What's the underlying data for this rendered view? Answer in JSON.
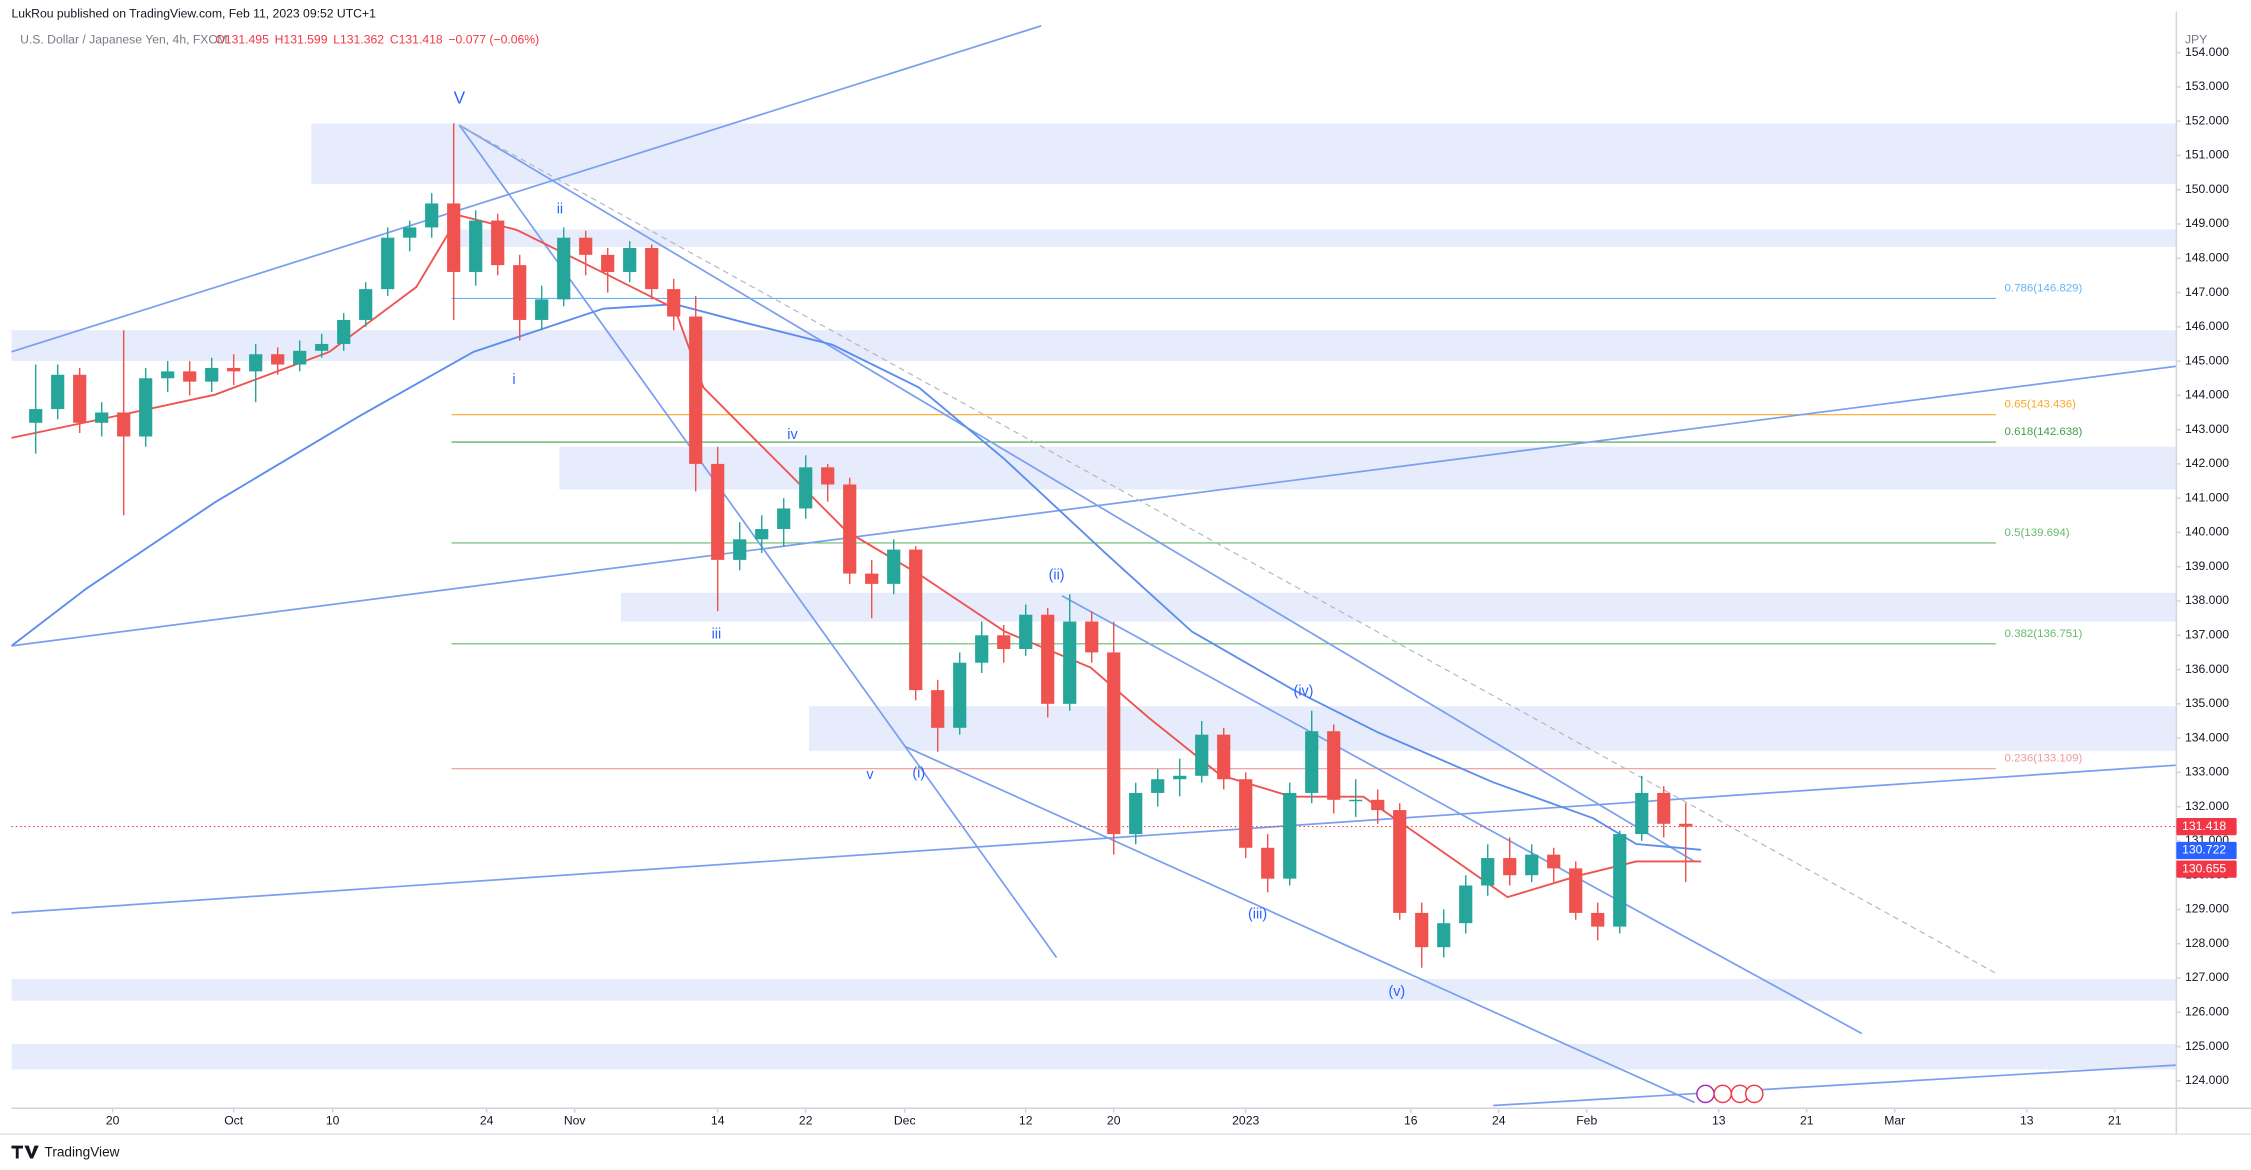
{
  "header": {
    "published": "LukRou published on TradingView.com, Feb 11, 2023 09:52 UTC+1"
  },
  "chart_data": {
    "type": "candlestick",
    "title": "U.S. Dollar / Japanese Yen, 4h, FXCM",
    "ohlc_labels": [
      "O131.495",
      "H131.599",
      "L131.362",
      "C131.418",
      "−0.077 (−0.06%)"
    ],
    "currency": "JPY",
    "up_color": "#26a69a",
    "down_color": "#ef5350",
    "x": [
      -18,
      -16,
      -14,
      -12,
      -10,
      -8,
      -6,
      -4,
      -2,
      0,
      2,
      4,
      6,
      8,
      10,
      12,
      14,
      16,
      18,
      20,
      22,
      24,
      26,
      28,
      30,
      32,
      34,
      36,
      38,
      40,
      42,
      44,
      46,
      48,
      50,
      52,
      54,
      56,
      58,
      60,
      62,
      64,
      66,
      68,
      70,
      72,
      74,
      76,
      78,
      80,
      82,
      84,
      86,
      88,
      90,
      92,
      94,
      96,
      98,
      100,
      102,
      104,
      106,
      108,
      110,
      112,
      114,
      116,
      118,
      120,
      122,
      124,
      126,
      128,
      130,
      132
    ],
    "ohlc": [
      [
        143.2,
        144.9,
        142.3,
        143.6
      ],
      [
        143.6,
        144.9,
        143.3,
        144.6
      ],
      [
        144.6,
        144.8,
        142.9,
        143.2
      ],
      [
        143.2,
        143.8,
        142.8,
        143.5
      ],
      [
        143.5,
        145.9,
        140.5,
        142.8
      ],
      [
        142.8,
        144.8,
        142.5,
        144.5
      ],
      [
        144.5,
        145.0,
        144.1,
        144.7
      ],
      [
        144.7,
        145.0,
        144.0,
        144.4
      ],
      [
        144.4,
        145.1,
        144.1,
        144.8
      ],
      [
        144.8,
        145.2,
        144.3,
        144.7
      ],
      [
        144.7,
        145.5,
        143.8,
        145.2
      ],
      [
        145.2,
        145.4,
        144.6,
        144.9
      ],
      [
        144.9,
        145.6,
        144.7,
        145.3
      ],
      [
        145.3,
        145.8,
        145.1,
        145.5
      ],
      [
        145.5,
        146.4,
        145.3,
        146.2
      ],
      [
        146.2,
        147.3,
        146.0,
        147.1
      ],
      [
        147.1,
        148.9,
        146.9,
        148.6
      ],
      [
        148.6,
        149.1,
        148.2,
        148.9
      ],
      [
        148.9,
        149.9,
        148.6,
        149.6
      ],
      [
        149.6,
        151.94,
        146.2,
        147.6
      ],
      [
        147.6,
        149.4,
        147.2,
        149.1
      ],
      [
        149.1,
        149.3,
        147.5,
        147.8
      ],
      [
        147.8,
        148.1,
        145.6,
        146.2
      ],
      [
        146.2,
        147.2,
        145.9,
        146.8
      ],
      [
        146.8,
        148.9,
        146.6,
        148.6
      ],
      [
        148.6,
        148.8,
        147.5,
        148.1
      ],
      [
        148.1,
        148.3,
        147.0,
        147.6
      ],
      [
        147.6,
        148.5,
        147.3,
        148.3
      ],
      [
        148.3,
        148.4,
        146.8,
        147.1
      ],
      [
        147.1,
        147.4,
        145.9,
        146.3
      ],
      [
        146.3,
        146.9,
        141.2,
        142.0
      ],
      [
        142.0,
        142.5,
        137.7,
        139.2
      ],
      [
        139.2,
        140.3,
        138.9,
        139.8
      ],
      [
        139.8,
        140.5,
        139.4,
        140.1
      ],
      [
        140.1,
        141.0,
        139.6,
        140.7
      ],
      [
        140.7,
        142.25,
        140.4,
        141.9
      ],
      [
        141.9,
        142.0,
        140.9,
        141.4
      ],
      [
        141.4,
        141.6,
        138.5,
        138.8
      ],
      [
        138.8,
        139.2,
        137.5,
        138.5
      ],
      [
        138.5,
        139.8,
        138.2,
        139.5
      ],
      [
        139.5,
        139.6,
        135.1,
        135.4
      ],
      [
        135.4,
        135.7,
        133.6,
        134.3
      ],
      [
        134.3,
        136.5,
        134.1,
        136.2
      ],
      [
        136.2,
        137.4,
        135.9,
        137.0
      ],
      [
        137.0,
        137.3,
        136.2,
        136.6
      ],
      [
        136.6,
        137.9,
        136.4,
        137.6
      ],
      [
        137.6,
        137.8,
        134.6,
        135.0
      ],
      [
        135.0,
        138.2,
        134.8,
        137.4
      ],
      [
        137.4,
        137.7,
        136.2,
        136.5
      ],
      [
        136.5,
        137.4,
        130.6,
        131.2
      ],
      [
        131.2,
        132.7,
        130.9,
        132.4
      ],
      [
        132.4,
        133.1,
        132.0,
        132.8
      ],
      [
        132.8,
        133.4,
        132.3,
        132.9
      ],
      [
        132.9,
        134.5,
        132.7,
        134.1
      ],
      [
        134.1,
        134.3,
        132.5,
        132.8
      ],
      [
        132.8,
        133.0,
        130.5,
        130.8
      ],
      [
        130.8,
        131.2,
        129.5,
        129.9
      ],
      [
        129.9,
        132.7,
        129.7,
        132.4
      ],
      [
        132.4,
        134.8,
        132.1,
        134.2
      ],
      [
        134.2,
        134.4,
        131.8,
        132.2
      ],
      [
        132.2,
        132.8,
        131.7,
        132.2
      ],
      [
        132.2,
        132.5,
        131.5,
        131.9
      ],
      [
        131.9,
        132.1,
        128.7,
        128.9
      ],
      [
        128.9,
        129.2,
        127.3,
        127.9
      ],
      [
        127.9,
        129.0,
        127.6,
        128.6
      ],
      [
        128.6,
        130.0,
        128.3,
        129.7
      ],
      [
        129.7,
        130.9,
        129.4,
        130.5
      ],
      [
        130.5,
        131.1,
        129.7,
        130.0
      ],
      [
        130.0,
        130.9,
        129.8,
        130.6
      ],
      [
        130.6,
        130.8,
        129.8,
        130.2
      ],
      [
        130.2,
        130.4,
        128.7,
        128.9
      ],
      [
        128.9,
        129.2,
        128.1,
        128.5
      ],
      [
        128.5,
        131.3,
        128.3,
        131.2
      ],
      [
        131.2,
        132.9,
        131.0,
        132.4
      ],
      [
        132.4,
        132.6,
        131.1,
        131.5
      ],
      [
        131.5,
        132.1,
        129.8,
        131.418
      ]
    ],
    "xlim": [
      -20.2,
      176.6
    ],
    "xticks": [
      {
        "value": -11,
        "label": "20"
      },
      {
        "value": 0,
        "label": "Oct"
      },
      {
        "value": 9,
        "label": "10"
      },
      {
        "value": 23,
        "label": "24"
      },
      {
        "value": 31,
        "label": "Nov"
      },
      {
        "value": 44,
        "label": "14"
      },
      {
        "value": 52,
        "label": "22"
      },
      {
        "value": 61,
        "label": "Dec"
      },
      {
        "value": 72,
        "label": "12"
      },
      {
        "value": 80,
        "label": "20"
      },
      {
        "value": 92,
        "label": "2023"
      },
      {
        "value": 107,
        "label": "16"
      },
      {
        "value": 115,
        "label": "24"
      },
      {
        "value": 123,
        "label": "Feb"
      },
      {
        "value": 135,
        "label": "13"
      },
      {
        "value": 143,
        "label": "21"
      },
      {
        "value": 151,
        "label": "Mar"
      },
      {
        "value": 163,
        "label": "13"
      },
      {
        "value": 171,
        "label": "21"
      }
    ],
    "ylim": [
      123.2,
      155.2
    ],
    "yticks": [
      {
        "value": 124,
        "label": "124.000"
      },
      {
        "value": 125,
        "label": "125.000"
      },
      {
        "value": 126,
        "label": "126.000"
      },
      {
        "value": 127,
        "label": "127.000"
      },
      {
        "value": 128,
        "label": "128.000"
      },
      {
        "value": 129,
        "label": "129.000"
      },
      {
        "value": 130,
        "label": "130.000"
      },
      {
        "value": 131,
        "label": "131.000"
      },
      {
        "value": 132,
        "label": "132.000"
      },
      {
        "value": 133,
        "label": "133.000"
      },
      {
        "value": 134,
        "label": "134.000"
      },
      {
        "value": 135,
        "label": "135.000"
      },
      {
        "value": 136,
        "label": "136.000"
      },
      {
        "value": 137,
        "label": "137.000"
      },
      {
        "value": 138,
        "label": "138.000"
      },
      {
        "value": 139,
        "label": "139.000"
      },
      {
        "value": 140,
        "label": "140.000"
      },
      {
        "value": 141,
        "label": "141.000"
      },
      {
        "value": 142,
        "label": "142.000"
      },
      {
        "value": 143,
        "label": "143.000"
      },
      {
        "value": 144,
        "label": "144.000"
      },
      {
        "value": 145,
        "label": "145.000"
      },
      {
        "value": 146,
        "label": "146.000"
      },
      {
        "value": 147,
        "label": "147.000"
      },
      {
        "value": 148,
        "label": "148.000"
      },
      {
        "value": 149,
        "label": "149.000"
      },
      {
        "value": 150,
        "label": "150.000"
      },
      {
        "value": 151,
        "label": "151.000"
      },
      {
        "value": 152,
        "label": "152.000"
      },
      {
        "value": 153,
        "label": "153.000"
      },
      {
        "value": 154,
        "label": "154.000"
      }
    ],
    "indicators": [
      {
        "color": "#5b8def",
        "x": [
          -20.2,
          -13.4,
          -1.7,
          11.4,
          21.8,
          33.6,
          40.1,
          46.6,
          54.4,
          62.3,
          70.1,
          79.2,
          87.1,
          96.2,
          104.0,
          114.5,
          123.6,
          127.5,
          133.4
        ],
        "values": [
          136.69,
          138.36,
          140.88,
          143.39,
          145.27,
          146.53,
          146.66,
          146.11,
          145.48,
          144.23,
          142.13,
          139.41,
          137.11,
          135.43,
          134.17,
          132.71,
          131.66,
          130.91,
          130.74
        ]
      },
      {
        "color": "#ef5350",
        "x": [
          -20.2,
          -10.8,
          -1.7,
          8.7,
          16.6,
          20.5,
          25.7,
          33.6,
          40.1,
          42.7,
          47.9,
          55.7,
          62.3,
          70.1,
          77.9,
          83.2,
          89.7,
          96.2,
          102.7,
          109.3,
          115.8,
          122.3,
          127.5,
          133.4
        ],
        "values": [
          142.76,
          143.39,
          144.02,
          145.27,
          147.16,
          149.25,
          148.83,
          147.58,
          146.53,
          144.23,
          142.55,
          140.04,
          138.78,
          137.11,
          136.06,
          134.59,
          132.92,
          132.29,
          132.29,
          130.82,
          129.36,
          129.99,
          130.4,
          130.4
        ]
      }
    ],
    "zone_color": "#e6ecfc",
    "zones": [
      {
        "x": 7.05,
        "range": [
          150.17,
          151.93
        ]
      },
      {
        "x": 20.5,
        "range": [
          148.33,
          148.84
        ]
      },
      {
        "x": -20.2,
        "range": [
          145.0,
          145.9
        ]
      },
      {
        "x": 29.6,
        "range": [
          141.25,
          142.5
        ]
      },
      {
        "x": 35.2,
        "range": [
          137.4,
          138.24
        ]
      },
      {
        "x": 52.3,
        "range": [
          133.63,
          134.93
        ]
      },
      {
        "x": -20.2,
        "range": [
          126.34,
          126.97
        ]
      },
      {
        "x": -20.2,
        "range": [
          124.33,
          125.08
        ]
      }
    ],
    "fib_x": [
      19.8,
      160.2
    ],
    "fib_levels": [
      {
        "label": "0.786(146.829)",
        "value": 146.829,
        "color": "#64b5f6"
      },
      {
        "label": "0.65(143.436)",
        "value": 143.436,
        "color": "#f9a825"
      },
      {
        "label": "0.618(142.638)",
        "value": 142.638,
        "color": "#43a047"
      },
      {
        "label": "0.5(139.694)",
        "value": 139.694,
        "color": "#66bb6a"
      },
      {
        "label": "0.382(136.751)",
        "value": 136.751,
        "color": "#66bb6a"
      },
      {
        "label": "0.236(133.109)",
        "value": 133.109,
        "color": "#ef9a9a"
      }
    ],
    "trend_color": "#7b9ff0",
    "trendlines": [
      {
        "x": [
          -20.2,
          73.4
        ],
        "values": [
          145.27,
          154.78
        ]
      },
      {
        "x": [
          -20.2,
          176.6
        ],
        "values": [
          136.69,
          144.85
        ]
      },
      {
        "x": [
          -20.2,
          176.6
        ],
        "values": [
          128.9,
          133.21
        ]
      },
      {
        "x": [
          20.5,
          132.8
        ],
        "values": [
          151.89,
          130.4
        ]
      },
      {
        "x": [
          20.5,
          74.8
        ],
        "values": [
          151.89,
          127.6
        ]
      },
      {
        "x": [
          61.0,
          132.8
        ],
        "values": [
          133.76,
          123.37
        ]
      },
      {
        "x": [
          114.5,
          176.6
        ],
        "values": [
          123.28,
          124.46
        ]
      },
      {
        "x": [
          75.3,
          148.0
        ],
        "values": [
          138.15,
          125.38
        ]
      }
    ],
    "dashed_line": {
      "x": [
        20.5,
        160.2
      ],
      "values": [
        151.89,
        127.14
      ]
    },
    "waves": [
      "V",
      "ii",
      "i",
      "iv",
      "iii",
      "v",
      "(i)",
      "(ii)",
      "(iii)",
      "(iv)",
      "(v)"
    ],
    "price_tags": [
      {
        "value": 131.418,
        "label": "131.418",
        "color": "#f23645"
      },
      {
        "value": 130.722,
        "label": "130.722",
        "color": "#2962ff"
      },
      {
        "value": 130.655,
        "label": "130.655",
        "color": "#f23645"
      }
    ]
  },
  "footer": {
    "brand": "TradingView"
  }
}
